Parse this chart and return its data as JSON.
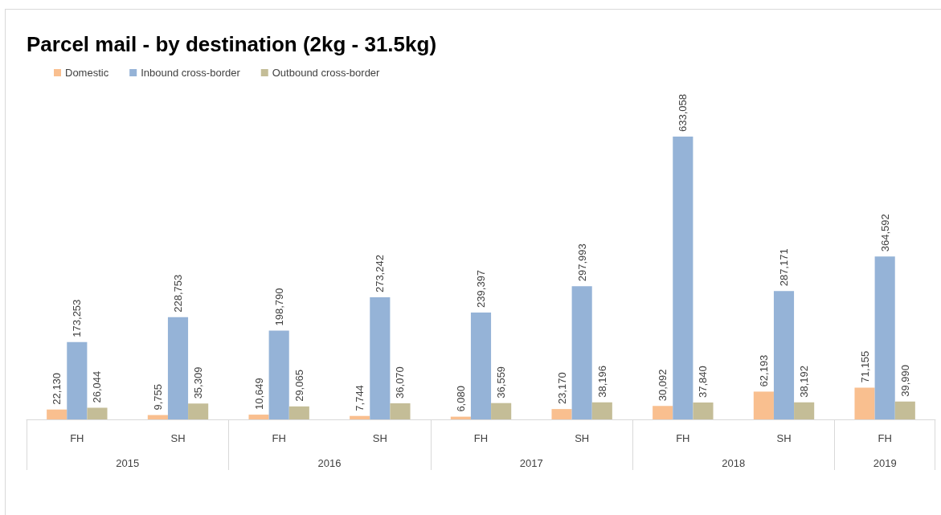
{
  "chart_data": {
    "type": "bar",
    "title": "Parcel mail - by destination (2kg - 31.5kg)",
    "categories": [
      "FH",
      "SH",
      "FH",
      "SH",
      "FH",
      "SH",
      "FH",
      "SH",
      "FH"
    ],
    "annotations": [
      "2015",
      "2016",
      "2017",
      "2018",
      "2019"
    ],
    "series": [
      {
        "name": "Domestic",
        "color": "#f9bf8f",
        "values": [
          22130,
          9755,
          10649,
          7744,
          6080,
          23170,
          30092,
          62193,
          71155
        ],
        "value_labels": [
          "22,130",
          "9,755",
          "10,649",
          "7,744",
          "6,080",
          "23,170",
          "30,092",
          "62,193",
          "71,155"
        ]
      },
      {
        "name": "Inbound cross-border",
        "color": "#95b3d7",
        "values": [
          173253,
          228753,
          198790,
          273242,
          239397,
          297993,
          633058,
          287171,
          364592
        ],
        "value_labels": [
          "173,253",
          "228,753",
          "198,790",
          "273,242",
          "239,397",
          "297,993",
          "633,058",
          "287,171",
          "364,592"
        ]
      },
      {
        "name": "Outbound cross-border",
        "color": "#c4bd97",
        "values": [
          26044,
          35309,
          29065,
          36070,
          36559,
          38196,
          37840,
          38192,
          39990
        ],
        "value_labels": [
          "26,044",
          "35,309",
          "29,065",
          "36,070",
          "36,559",
          "38,196",
          "37,840",
          "38,192",
          "39,990"
        ]
      }
    ],
    "legend": "top left"
  }
}
